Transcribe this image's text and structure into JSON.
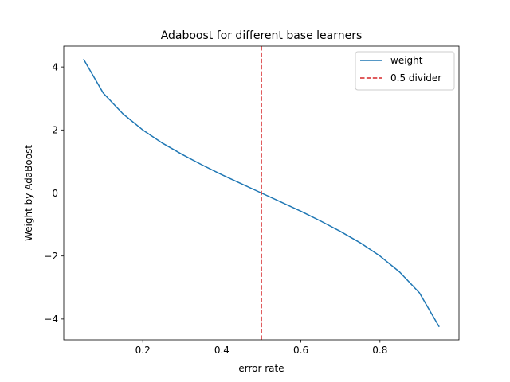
{
  "chart_data": {
    "type": "line",
    "title": "Adaboost for different base learners",
    "xlabel": "error rate",
    "ylabel": "Weight by AdaBoost",
    "xlim": [
      0.0,
      1.0
    ],
    "ylim": [
      -4.66,
      4.66
    ],
    "xticks": [
      0.2,
      0.4,
      0.6,
      0.8
    ],
    "xtick_labels": [
      "0.2",
      "0.4",
      "0.6",
      "0.8"
    ],
    "yticks": [
      4,
      2,
      0,
      -2,
      -4
    ],
    "ytick_labels": [
      "4",
      "2",
      "0",
      "−2",
      "−4"
    ],
    "grid": false,
    "legend_position": "top-right",
    "series": [
      {
        "name": "weight",
        "color": "#1f77b4",
        "style": "solid",
        "x": [
          0.05,
          0.1,
          0.15,
          0.2,
          0.25,
          0.3,
          0.35,
          0.4,
          0.45,
          0.5,
          0.55,
          0.6,
          0.65,
          0.7,
          0.75,
          0.8,
          0.85,
          0.9,
          0.95
        ],
        "y": [
          4.25,
          3.17,
          2.51,
          2.0,
          1.58,
          1.22,
          0.89,
          0.58,
          0.29,
          0.0,
          -0.29,
          -0.58,
          -0.89,
          -1.22,
          -1.58,
          -2.0,
          -2.51,
          -3.17,
          -4.25
        ]
      },
      {
        "name": "0.5 divider",
        "color": "#d62728",
        "style": "dashed",
        "vline_x": 0.5
      }
    ]
  }
}
